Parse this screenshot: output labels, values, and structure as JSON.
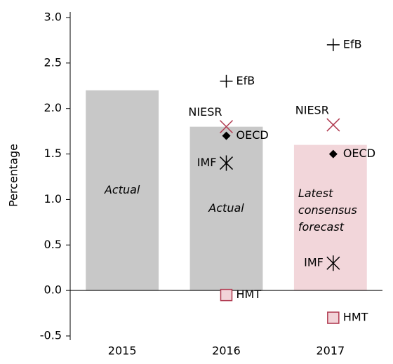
{
  "chart_data": {
    "type": "bar",
    "y_label": "Percentage",
    "categories": [
      "2015",
      "2016",
      "2017"
    ],
    "values": [
      2.2,
      1.8,
      1.6
    ],
    "colors": [
      "#c8c8c8",
      "#c8c8c8",
      "#f2d6da"
    ],
    "bar_labels": [
      [
        "Actual"
      ],
      [
        "Actual"
      ],
      [
        "Latest",
        "consensus",
        "forecast"
      ]
    ],
    "ylim": [
      -0.5,
      3.0
    ],
    "yticks": [
      {
        "value": 3,
        "label": "3.0"
      },
      2.5,
      {
        "value": 2,
        "label": "2.0"
      },
      1.5,
      {
        "value": 1,
        "label": "1.0"
      },
      0.5,
      {
        "value": 0,
        "label": "0.0"
      },
      -0.5
    ],
    "series": [
      {
        "name": "EfB",
        "marker": "plus",
        "color": "#000000",
        "values": [
          null,
          2.3,
          2.7
        ]
      },
      {
        "name": "NIESR",
        "marker": "x",
        "color": "#b03a50",
        "values": [
          null,
          1.8,
          1.82
        ]
      },
      {
        "name": "OECD",
        "marker": "diamond",
        "color": "#000000",
        "values": [
          null,
          1.7,
          1.5
        ]
      },
      {
        "name": "IMF",
        "marker": "asterisk",
        "color": "#000000",
        "values": [
          null,
          1.4,
          0.3
        ]
      },
      {
        "name": "HMT",
        "marker": "square",
        "color": "#b03a50",
        "values": [
          null,
          -0.05,
          -0.3
        ]
      }
    ]
  }
}
